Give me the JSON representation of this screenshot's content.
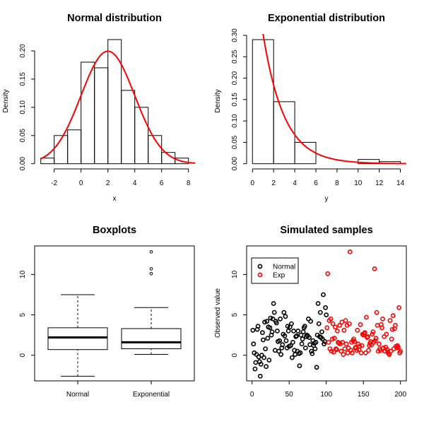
{
  "chart_data": [
    {
      "type": "histogram",
      "title": "Normal distribution",
      "xlabel": "x",
      "ylabel": "Density",
      "bins": [
        [
          -3,
          -2
        ],
        [
          -2,
          -1
        ],
        [
          -1,
          0
        ],
        [
          0,
          1
        ],
        [
          1,
          2
        ],
        [
          2,
          3
        ],
        [
          3,
          4
        ],
        [
          4,
          5
        ],
        [
          5,
          6
        ],
        [
          6,
          7
        ],
        [
          7,
          8
        ]
      ],
      "density": [
        0.01,
        0.05,
        0.06,
        0.18,
        0.17,
        0.22,
        0.13,
        0.1,
        0.05,
        0.02,
        0.01
      ],
      "curve": {
        "distribution": "normal",
        "mean": 2,
        "sd": 2,
        "x_range": [
          -3,
          8.5
        ],
        "color": "#ff0000"
      },
      "xticks": [
        "-2",
        "0",
        "2",
        "4",
        "6",
        "8"
      ],
      "yticks": [
        "0.00",
        "0.05",
        "0.10",
        "0.15",
        "0.20"
      ]
    },
    {
      "type": "histogram",
      "title": "Exponential distribution",
      "xlabel": "y",
      "ylabel": "Density",
      "bins": [
        [
          0,
          2
        ],
        [
          2,
          4
        ],
        [
          4,
          6
        ],
        [
          6,
          8
        ],
        [
          8,
          10
        ],
        [
          10,
          12
        ],
        [
          12,
          14
        ]
      ],
      "density": [
        0.29,
        0.145,
        0.05,
        0,
        0,
        0.01,
        0.005
      ],
      "curve": {
        "distribution": "exponential",
        "rate": 0.5,
        "x_range": [
          0,
          14.6
        ],
        "color": "#ff0000"
      },
      "xticks": [
        "0",
        "2",
        "4",
        "6",
        "8",
        "10",
        "12",
        "14"
      ],
      "yticks": [
        "0.00",
        "0.05",
        "0.10",
        "0.15",
        "0.20",
        "0.25",
        "0.30"
      ]
    },
    {
      "type": "boxplot",
      "title": "Boxplots",
      "categories": [
        "Normal",
        "Exponential"
      ],
      "boxes": [
        {
          "whisker_low": -2.6,
          "q1": 0.7,
          "median": 2.2,
          "q3": 3.4,
          "whisker_high": 7.5,
          "outliers": []
        },
        {
          "whisker_low": 0.1,
          "q1": 0.8,
          "median": 1.6,
          "q3": 3.3,
          "whisker_high": 5.9,
          "outliers": [
            10.1,
            10.7,
            12.8
          ]
        }
      ],
      "yticks": [
        "0",
        "5",
        "10"
      ]
    },
    {
      "type": "scatter",
      "title": "Simulated samples",
      "xlabel": "",
      "ylabel": "Observed value",
      "xticks": [
        "0",
        "50",
        "100",
        "150",
        "200"
      ],
      "yticks": [
        "0",
        "5",
        "10"
      ],
      "legend": {
        "position": "top-left",
        "entries": [
          {
            "name": "Normal",
            "color": "#000000"
          },
          {
            "name": "Exp",
            "color": "#ff0000"
          }
        ]
      },
      "series": [
        {
          "name": "Normal",
          "color": "#000000",
          "x_start": 1,
          "values": [
            3.1,
            1.4,
            0.3,
            -1.7,
            -0.9,
            0.1,
            3.2,
            3.6,
            -0.2,
            -0.8,
            -2.6,
            -1.1,
            0.0,
            2.8,
            1.9,
            -0.3,
            4.1,
            0.8,
            -1.4,
            4.2,
            2.1,
            3.5,
            -0.6,
            3.4,
            4.6,
            2.5,
            2.9,
            4.5,
            6.4,
            5.3,
            0.6,
            4.2,
            4.0,
            3.0,
            1.7,
            0.5,
            1.8,
            4.5,
            0.1,
            0.9,
            1.3,
            2.6,
            5.3,
            2.4,
            4.8,
            1.8,
            0.9,
            3.6,
            3.0,
            1.1,
            3.5,
            1.2,
            3.9,
            -0.3,
            1.6,
            3.0,
            0.6,
            0.1,
            2.3,
            2.4,
            0.5,
            3.0,
            0.2,
            -1.3,
            0.3,
            2.5,
            1.4,
            2.0,
            2.9,
            3.4,
            3.6,
            0.9,
            2.3,
            2.5,
            2.4,
            4.5,
            2.2,
            1.3,
            4.2,
            0.5,
            0.2,
            1.8,
            1.2,
            1.5,
            0.8,
            1.6,
            -1.5,
            2.5,
            6.4,
            3.9,
            2.3,
            5.3,
            2.2,
            2.9,
            2.0,
            7.5,
            1.4,
            1.7,
            5.9,
            5.0
          ]
        },
        {
          "name": "Exp",
          "color": "#ff0000",
          "x_start": 101,
          "values": [
            3.4,
            10.1,
            1.6,
            4.3,
            0.8,
            4.5,
            0.5,
            2.0,
            3.9,
            0.4,
            2.1,
            3.5,
            0.8,
            0.7,
            3.0,
            1.6,
            1.5,
            3.7,
            1.4,
            0.5,
            4.1,
            1.6,
            0.1,
            3.1,
            0.8,
            4.3,
            1.4,
            3.7,
            0.3,
            0.9,
            3.9,
            12.8,
            0.6,
            1.6,
            0.3,
            1.8,
            2.0,
            1.7,
            0.9,
            1.0,
            0.6,
            3.1,
            1.4,
            0.7,
            1.1,
            3.8,
            0.3,
            1.2,
            2.6,
            2.5,
            2.7,
            2.8,
            0.3,
            4.7,
            2.2,
            2.3,
            0.6,
            1.2,
            1.5,
            1.7,
            1.3,
            2.6,
            2.9,
            1.6,
            10.7,
            1.8,
            2.1,
            5.3,
            3.7,
            0.5,
            1.4,
            0.8,
            0.6,
            3.8,
            3.4,
            4.5,
            0.9,
            2.3,
            0.5,
            1.0,
            2.6,
            0.7,
            0.4,
            0.2,
            0.1,
            4.3,
            0.5,
            2.0,
            3.2,
            4.9,
            0.8,
            3.3,
            3.7,
            1.1,
            0.9,
            1.2,
            1.0,
            5.9,
            0.3,
            0.5
          ]
        }
      ]
    }
  ]
}
